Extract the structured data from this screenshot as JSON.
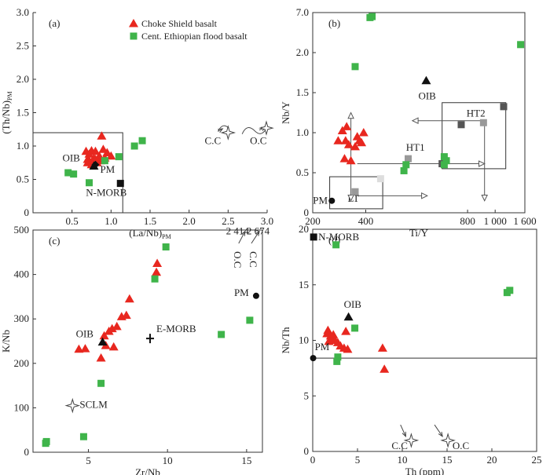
{
  "legend": {
    "items": [
      {
        "label": "Choke Shield basalt",
        "marker": "triangle",
        "color": "#e8271f"
      },
      {
        "label": "Cent. Ethiopian flood basalt",
        "marker": "square",
        "color": "#3fb44a"
      }
    ]
  },
  "colors": {
    "red": "#e8271f",
    "green": "#3fb44a",
    "black": "#111111",
    "dark_gray": "#555555",
    "gray": "#999999",
    "light_gray": "#cccccc"
  },
  "chart_data": [
    {
      "id": "a",
      "panel_label": "(a)",
      "type": "scatter",
      "xlabel": "(La/Nb)",
      "xlabel_sub": "PM",
      "ylabel": "(Th/Nb)",
      "ylabel_sub": "PM",
      "xlim": [
        0,
        3.0
      ],
      "ylim": [
        0,
        3.0
      ],
      "xticks": [
        {
          "v": 0.5,
          "t": "0.5"
        },
        {
          "v": 1.0,
          "t": "1.0"
        },
        {
          "v": 1.5,
          "t": "1.5"
        },
        {
          "v": 2.0,
          "t": "2.0"
        },
        {
          "v": 2.5,
          "t": "2.5"
        },
        {
          "v": 3.0,
          "t": "3.0"
        }
      ],
      "yticks": [
        {
          "v": 0,
          "t": "0"
        },
        {
          "v": 0.5,
          "t": "0.5"
        },
        {
          "v": 1.0,
          "t": "1.0"
        },
        {
          "v": 1.5,
          "t": "1.5"
        },
        {
          "v": 2.0,
          "t": "2.0"
        },
        {
          "v": 2.5,
          "t": "2.5"
        },
        {
          "v": 3.0,
          "t": "3.0"
        }
      ],
      "series": [
        {
          "name": "Choke Shield basalt",
          "marker": "triangle",
          "color": "#e8271f",
          "points": [
            [
              0.68,
              0.92
            ],
            [
              0.72,
              0.88
            ],
            [
              0.75,
              0.93
            ],
            [
              0.8,
              0.92
            ],
            [
              0.7,
              0.8
            ],
            [
              0.78,
              0.82
            ],
            [
              0.85,
              0.85
            ],
            [
              0.9,
              0.95
            ],
            [
              0.95,
              0.9
            ],
            [
              1.0,
              0.85
            ],
            [
              0.82,
              0.75
            ],
            [
              0.75,
              0.72
            ],
            [
              0.72,
              0.78
            ],
            [
              0.88,
              1.15
            ],
            [
              0.8,
              0.8
            ],
            [
              0.86,
              0.78
            ],
            [
              0.92,
              0.82
            ],
            [
              0.7,
              0.75
            ]
          ]
        },
        {
          "name": "Cent. Ethiopian flood basalt",
          "marker": "square",
          "color": "#3fb44a",
          "points": [
            [
              0.45,
              0.6
            ],
            [
              0.52,
              0.58
            ],
            [
              0.72,
              0.45
            ],
            [
              0.92,
              0.78
            ],
            [
              1.1,
              0.84
            ],
            [
              1.3,
              1.0
            ],
            [
              1.4,
              1.08
            ]
          ]
        }
      ],
      "reference": [
        {
          "label": "OIB",
          "x": 0.78,
          "y": 0.7,
          "marker": "triangle",
          "color": "#111111",
          "dx": -40,
          "dy": -6
        },
        {
          "label": "PM",
          "x": 0.8,
          "y": 0.72,
          "marker": "diamond",
          "color": "#111111",
          "dx": 6,
          "dy": 10
        },
        {
          "label": "N-MORB",
          "x": 1.12,
          "y": 0.44,
          "marker": "square",
          "color": "#111111",
          "dx": -44,
          "dy": 16
        }
      ],
      "stars": [
        {
          "label": "C.C",
          "x": 2.5,
          "y": 1.2,
          "lx": 2.2,
          "ly": 1.03,
          "arrow_from": [
            2.37,
            1.22
          ]
        }
      ],
      "texts": [
        {
          "text": "O.C",
          "x": 2.78,
          "y": 1.03
        }
      ],
      "boxes": [
        [
          0,
          0,
          1.15,
          1.2
        ]
      ]
    },
    {
      "id": "b",
      "panel_label": "(b)",
      "type": "scatter",
      "xlabel": "Ti/Y",
      "ylabel": "Nb/Y",
      "yticks": [
        {
          "p": 0.0,
          "t": "0"
        },
        {
          "p": 0.2,
          "t": "0.5"
        },
        {
          "p": 0.4,
          "t": "1.0"
        },
        {
          "p": 0.6,
          "t": "1.5"
        },
        {
          "p": 0.8,
          "t": "2.0"
        },
        {
          "p": 1.0,
          "t": "7.0"
        }
      ],
      "xticks": [
        {
          "p": 0.0,
          "t": "200"
        },
        {
          "p": 0.25,
          "t": "400"
        },
        {
          "p": 0.73,
          "t": "800"
        },
        {
          "p": 0.86,
          "t": "1 000"
        },
        {
          "p": 1.0,
          "t": "1 600"
        }
      ],
      "series": [
        {
          "name": "Choke Shield basalt",
          "marker": "triangle",
          "color": "#e8271f",
          "points": [
            [
              0.12,
              0.36
            ],
            [
              0.155,
              0.36
            ],
            [
              0.17,
              0.34
            ],
            [
              0.2,
              0.33
            ],
            [
              0.22,
              0.36
            ],
            [
              0.24,
              0.4
            ],
            [
              0.14,
              0.41
            ],
            [
              0.16,
              0.43
            ],
            [
              0.15,
              0.27
            ],
            [
              0.18,
              0.26
            ],
            [
              0.23,
              0.35
            ],
            [
              0.21,
              0.38
            ]
          ]
        },
        {
          "name": "Cent. Ethiopian flood basalt",
          "marker": "square",
          "color": "#3fb44a",
          "points": [
            [
              0.27,
              0.975
            ],
            [
              0.28,
              0.98
            ],
            [
              0.2,
              0.73
            ],
            [
              0.43,
              0.21
            ],
            [
              0.44,
              0.24
            ],
            [
              0.62,
              0.28
            ],
            [
              0.63,
              0.26
            ],
            [
              0.62,
              0.24
            ],
            [
              0.98,
              0.84
            ]
          ]
        }
      ],
      "reference": [
        {
          "label": "OIB",
          "p": 0.535,
          "q": 0.66,
          "marker": "triangle",
          "color": "#111111",
          "dx": -10,
          "dy": 24
        },
        {
          "label": "PM",
          "p": 0.09,
          "q": 0.06,
          "marker": "circle",
          "color": "#111111",
          "dx": -24,
          "dy": 4
        }
      ],
      "grays": [
        [
          0.45,
          0.27,
          "#999999"
        ],
        [
          0.2,
          0.105,
          "#999999"
        ],
        [
          0.32,
          0.17,
          "#dddddd"
        ],
        [
          0.61,
          0.245,
          "#555555"
        ],
        [
          0.7,
          0.44,
          "#555555"
        ],
        [
          0.805,
          0.45,
          "#999999"
        ],
        [
          0.9,
          0.53,
          "#555555"
        ]
      ],
      "boxes": [
        [
          0.08,
          0.02,
          0.33,
          0.18
        ],
        [
          0.61,
          0.22,
          0.91,
          0.55
        ]
      ],
      "box_labels": [
        {
          "text": "LT",
          "p": 0.165,
          "q": 0.055
        },
        {
          "text": "HT1",
          "p": 0.44,
          "q": 0.31
        },
        {
          "text": "HT2",
          "p": 0.725,
          "q": 0.48
        }
      ]
    },
    {
      "id": "c",
      "panel_label": "(c)",
      "type": "scatter",
      "xlabel": "Zr/Nb",
      "ylabel": "K/Nb",
      "xlim": [
        1.5,
        16
      ],
      "ylim": [
        0,
        500
      ],
      "xticks": [
        {
          "v": 5,
          "t": "5"
        },
        {
          "v": 10,
          "t": "10"
        },
        {
          "v": 15,
          "t": "15"
        }
      ],
      "yticks": [
        {
          "v": 0,
          "t": "0"
        },
        {
          "v": 100,
          "t": "100"
        },
        {
          "v": 200,
          "t": "200"
        },
        {
          "v": 300,
          "t": "300"
        },
        {
          "v": 400,
          "t": "400"
        },
        {
          "v": 500,
          "t": "500"
        }
      ],
      "series": [
        {
          "name": "Choke Shield basalt",
          "marker": "triangle",
          "color": "#e8271f",
          "points": [
            [
              4.4,
              232
            ],
            [
              4.8,
              233
            ],
            [
              5.8,
              212
            ],
            [
              6.1,
              240
            ],
            [
              6.0,
              262
            ],
            [
              6.3,
              272
            ],
            [
              6.5,
              278
            ],
            [
              6.8,
              283
            ],
            [
              7.1,
              305
            ],
            [
              7.4,
              308
            ],
            [
              7.6,
              345
            ],
            [
              9.3,
              405
            ],
            [
              9.35,
              425
            ],
            [
              6.6,
              237
            ]
          ]
        },
        {
          "name": "Cent. Ethiopian flood basalt",
          "marker": "square",
          "color": "#3fb44a",
          "points": [
            [
              2.3,
              20
            ],
            [
              2.35,
              24
            ],
            [
              4.7,
              35
            ],
            [
              5.8,
              155
            ],
            [
              9.2,
              390
            ],
            [
              9.9,
              462
            ],
            [
              13.4,
              265
            ],
            [
              15.2,
              297
            ]
          ]
        }
      ],
      "reference": [
        {
          "label": "OIB",
          "x": 5.9,
          "y": 248,
          "marker": "triangle",
          "color": "#111111",
          "dx": -34,
          "dy": -6
        },
        {
          "label": "E-MORB",
          "x": 8.9,
          "y": 256,
          "marker": "plus",
          "color": "#111111",
          "dx": 8,
          "dy": -8
        },
        {
          "label": "PM",
          "x": 15.6,
          "y": 352,
          "marker": "circle",
          "color": "#111111",
          "dx": -28,
          "dy": 0
        }
      ],
      "stars": [
        {
          "label": "SCLM",
          "x": 4.0,
          "y": 105,
          "lx": 4.45,
          "ly": 100,
          "arrow_from": null
        }
      ],
      "texts": [
        {
          "text": "2 414",
          "x": 13.7,
          "y": 490
        },
        {
          "text": "2 674",
          "x": 15.0,
          "y": 490
        }
      ],
      "rot_texts": [
        {
          "text": "O.C",
          "x": 14.2,
          "y": 452
        },
        {
          "text": "C.C",
          "x": 15.2,
          "y": 452
        }
      ]
    },
    {
      "id": "d",
      "panel_label": "(d)",
      "type": "scatter",
      "xlabel": "Th (ppm)",
      "ylabel": "Nb/Th",
      "xlim": [
        0,
        25
      ],
      "ylim": [
        0,
        20
      ],
      "xticks": [
        {
          "v": 0,
          "t": "0"
        },
        {
          "v": 5,
          "t": "5"
        },
        {
          "v": 10,
          "t": "10"
        },
        {
          "v": 15,
          "t": "15"
        },
        {
          "v": 20,
          "t": "20"
        },
        {
          "v": 25,
          "t": "25"
        }
      ],
      "yticks": [
        {
          "v": 0,
          "t": "0"
        },
        {
          "v": 5,
          "t": "5"
        },
        {
          "v": 10,
          "t": "10"
        },
        {
          "v": 15,
          "t": "15"
        },
        {
          "v": 20,
          "t": "20"
        }
      ],
      "series": [
        {
          "name": "Choke Shield basalt",
          "marker": "triangle",
          "color": "#e8271f",
          "points": [
            [
              1.6,
              10.6
            ],
            [
              1.7,
              10.9
            ],
            [
              2.0,
              10.4
            ],
            [
              2.3,
              10.5
            ],
            [
              2.5,
              10.0
            ],
            [
              1.8,
              9.9
            ],
            [
              2.8,
              9.8
            ],
            [
              3.1,
              9.5
            ],
            [
              3.5,
              9.3
            ],
            [
              3.7,
              10.8
            ],
            [
              3.9,
              9.2
            ],
            [
              7.8,
              9.3
            ],
            [
              8.0,
              7.4
            ],
            [
              2.2,
              10.2
            ]
          ]
        },
        {
          "name": "Cent. Ethiopian flood basalt",
          "marker": "square",
          "color": "#3fb44a",
          "points": [
            [
              2.6,
              18.6
            ],
            [
              2.7,
              8.1
            ],
            [
              2.8,
              8.5
            ],
            [
              4.7,
              11.1
            ],
            [
              21.7,
              14.3
            ],
            [
              22.0,
              14.5
            ]
          ]
        }
      ],
      "reference": [
        {
          "label": "OIB",
          "x": 4.0,
          "y": 12.1,
          "marker": "triangle",
          "color": "#111111",
          "dx": -6,
          "dy": -12
        },
        {
          "label": "N-MORB",
          "x": 0.1,
          "y": 19.3,
          "marker": "square",
          "color": "#111111",
          "dx": 6,
          "dy": 4
        },
        {
          "label": "PM",
          "x": 0.05,
          "y": 8.4,
          "marker": "circle",
          "color": "#111111",
          "dx": 2,
          "dy": -10
        }
      ],
      "stars": [
        {
          "label": "C.C",
          "x": 11.0,
          "y": 1.0,
          "lx": 8.8,
          "ly": 0.2,
          "arrow_from": [
            9.8,
            2.4
          ]
        },
        {
          "label": "O.C",
          "x": 15.1,
          "y": 1.0,
          "lx": 15.6,
          "ly": 0.2,
          "arrow_from": [
            13.6,
            2.4
          ]
        }
      ],
      "hlines": [
        8.4
      ]
    }
  ]
}
